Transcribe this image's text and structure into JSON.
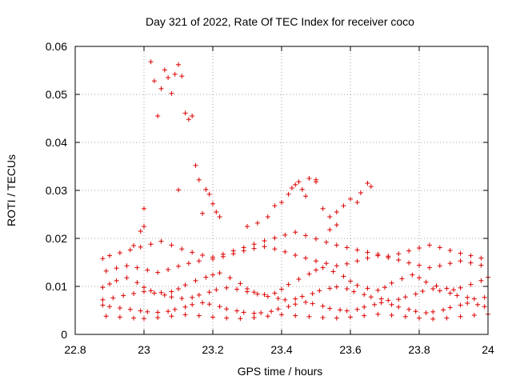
{
  "chart_data": {
    "type": "scatter",
    "title": "Day 321 of 2022, Rate Of TEC Index for receiver coco",
    "xlabel": "GPS time / hours",
    "ylabel": "ROTI / TECUs",
    "xlim": [
      22.8,
      24
    ],
    "ylim": [
      0,
      0.06
    ],
    "x_ticks": [
      "22.8",
      "23",
      "23.2",
      "23.4",
      "23.6",
      "23.8",
      "24"
    ],
    "y_ticks": [
      "0",
      "0.01",
      "0.02",
      "0.03",
      "0.04",
      "0.05",
      "0.06"
    ],
    "grid": true,
    "marker": "plus",
    "color": "#dd0000",
    "series": [
      {
        "x": [
          22.88,
          22.9,
          22.92,
          22.95,
          22.98,
          23.0,
          23.02,
          23.05,
          23.08,
          23.1,
          23.12,
          23.15,
          23.18,
          23.2,
          23.22,
          23.25,
          23.28,
          23.3,
          23.32,
          23.35,
          23.38,
          23.4,
          23.42,
          23.45,
          23.48,
          23.5,
          23.52,
          23.55,
          23.58,
          23.6,
          23.62,
          23.65,
          23.68,
          23.7,
          23.72,
          23.75,
          23.78,
          23.8,
          23.82,
          23.85,
          23.88,
          23.9,
          23.92,
          23.95,
          23.98,
          24.0,
          22.88,
          22.9,
          22.93,
          22.96,
          22.99,
          23.01,
          23.04,
          23.07,
          23.09,
          23.12,
          23.14,
          23.17,
          23.19,
          23.22,
          23.24,
          23.27,
          23.29,
          23.32,
          23.34,
          23.37,
          23.39,
          23.42,
          23.44,
          23.47,
          23.49,
          23.52,
          23.54,
          23.57,
          23.59,
          23.62,
          23.64,
          23.67,
          23.69,
          23.72,
          23.74,
          23.77,
          23.79,
          23.82,
          23.84,
          23.87,
          23.89,
          23.92,
          23.94,
          23.97,
          23.99,
          22.88,
          22.91,
          22.94,
          22.97,
          23.0,
          23.03,
          23.06,
          23.08,
          23.11,
          23.14,
          23.16,
          23.19,
          23.21,
          23.24,
          23.27,
          23.3,
          23.33,
          23.36,
          23.39,
          23.41,
          23.44,
          23.46,
          23.49,
          23.51,
          23.54,
          23.56,
          23.59,
          23.61,
          23.64,
          23.66,
          23.69,
          23.71,
          23.74,
          23.76,
          23.79,
          23.81,
          23.84,
          23.86,
          23.89,
          23.91,
          23.94,
          23.96,
          23.99,
          22.89,
          22.92,
          22.95,
          22.98,
          23.01,
          23.04,
          23.07,
          23.1,
          23.13,
          23.16,
          23.2,
          23.23,
          23.26,
          23.29,
          23.32,
          23.35,
          23.38,
          23.41,
          23.44,
          23.47,
          23.5,
          23.53,
          23.56,
          23.59,
          23.62,
          23.65,
          23.68,
          23.71,
          23.74,
          23.77,
          23.8,
          23.83,
          23.86,
          23.89,
          23.92,
          23.95,
          23.98,
          22.89,
          22.93,
          22.97,
          23.0,
          23.04,
          23.08,
          23.12,
          23.16,
          23.2,
          23.24,
          23.28,
          23.32,
          23.36,
          23.4,
          23.44,
          23.48,
          23.52,
          23.56,
          23.6,
          23.64,
          23.68,
          23.72,
          23.76,
          23.8,
          23.84,
          23.88,
          23.92,
          23.96,
          24.0,
          22.88,
          22.9,
          22.93,
          22.96,
          22.99,
          23.02,
          23.05,
          23.08,
          23.11,
          23.14,
          23.17,
          23.2,
          23.23,
          23.26,
          23.29,
          23.32,
          23.35,
          23.38,
          23.41,
          23.44,
          23.47,
          23.5,
          23.53,
          23.56,
          23.59,
          23.62,
          23.65,
          23.68,
          23.71,
          23.74,
          23.77,
          23.8,
          23.83,
          23.86,
          23.89,
          23.92,
          23.95,
          23.98,
          22.97,
          22.99,
          23.0,
          23.0,
          23.02,
          23.03,
          23.04,
          23.05,
          23.06,
          23.07,
          23.08,
          23.09,
          23.1,
          23.1,
          23.11,
          23.12,
          23.13,
          23.14,
          23.15,
          23.16,
          23.17,
          23.18,
          23.19,
          23.2,
          23.21,
          23.22,
          23.38,
          23.4,
          23.42,
          23.43,
          23.45,
          23.46,
          23.47,
          23.48,
          23.5,
          23.52,
          23.54,
          23.56,
          23.58,
          23.6,
          23.62,
          23.63,
          23.65,
          23.66,
          23.54,
          23.56,
          23.44,
          23.5,
          23.36,
          23.33,
          23.3
        ],
        "y": [
          0.0098,
          0.0105,
          0.0112,
          0.0118,
          0.0108,
          0.0098,
          0.0091,
          0.0087,
          0.0089,
          0.0095,
          0.0103,
          0.0112,
          0.0119,
          0.0124,
          0.0128,
          0.0118,
          0.0106,
          0.0095,
          0.0088,
          0.0083,
          0.0086,
          0.0094,
          0.0104,
          0.0115,
          0.0126,
          0.0134,
          0.0139,
          0.0131,
          0.0121,
          0.0111,
          0.0102,
          0.0096,
          0.0092,
          0.0098,
          0.0107,
          0.0116,
          0.0124,
          0.0118,
          0.0109,
          0.0101,
          0.0096,
          0.0093,
          0.0097,
          0.0104,
          0.0112,
          0.0119,
          0.0061,
          0.0058,
          0.0055,
          0.0052,
          0.0049,
          0.0047,
          0.0046,
          0.0048,
          0.0052,
          0.0057,
          0.0062,
          0.0066,
          0.0063,
          0.0058,
          0.0053,
          0.0049,
          0.0046,
          0.0044,
          0.0045,
          0.0048,
          0.0053,
          0.0058,
          0.0063,
          0.0067,
          0.0064,
          0.0059,
          0.0054,
          0.0051,
          0.0049,
          0.0052,
          0.0057,
          0.0062,
          0.0066,
          0.0062,
          0.0057,
          0.0052,
          0.0048,
          0.0045,
          0.0047,
          0.0051,
          0.0056,
          0.0061,
          0.0065,
          0.0062,
          0.0058,
          0.0072,
          0.0076,
          0.0081,
          0.0085,
          0.0089,
          0.0086,
          0.0082,
          0.0078,
          0.0075,
          0.0077,
          0.0082,
          0.0088,
          0.0093,
          0.0097,
          0.0094,
          0.0089,
          0.0084,
          0.0079,
          0.0075,
          0.0072,
          0.0074,
          0.0079,
          0.0085,
          0.0091,
          0.0096,
          0.0099,
          0.0095,
          0.0089,
          0.0083,
          0.0078,
          0.0074,
          0.0071,
          0.0073,
          0.0078,
          0.0084,
          0.009,
          0.0095,
          0.0091,
          0.0086,
          0.0081,
          0.0077,
          0.0074,
          0.0077,
          0.0132,
          0.0138,
          0.0143,
          0.0139,
          0.0134,
          0.0129,
          0.0135,
          0.0142,
          0.0148,
          0.0153,
          0.0157,
          0.0162,
          0.0168,
          0.0174,
          0.0179,
          0.0183,
          0.0178,
          0.0172,
          0.0165,
          0.0159,
          0.0153,
          0.0148,
          0.0143,
          0.0147,
          0.0153,
          0.0159,
          0.0164,
          0.016,
          0.0155,
          0.0149,
          0.0144,
          0.0139,
          0.0143,
          0.0148,
          0.0153,
          0.0149,
          0.0144,
          0.0038,
          0.0036,
          0.0034,
          0.0033,
          0.0035,
          0.0038,
          0.0041,
          0.0039,
          0.0036,
          0.0034,
          0.0033,
          0.0035,
          0.0038,
          0.0041,
          0.0039,
          0.0037,
          0.0035,
          0.0034,
          0.0036,
          0.0039,
          0.0042,
          0.004,
          0.0037,
          0.0034,
          0.0032,
          0.0034,
          0.0037,
          0.004,
          0.0042,
          0.0158,
          0.0164,
          0.017,
          0.0176,
          0.0182,
          0.0188,
          0.0194,
          0.0186,
          0.0178,
          0.0171,
          0.0165,
          0.0161,
          0.0167,
          0.0174,
          0.0181,
          0.0188,
          0.0195,
          0.0201,
          0.0207,
          0.0213,
          0.0206,
          0.0199,
          0.0192,
          0.0186,
          0.0181,
          0.0176,
          0.0171,
          0.0167,
          0.0163,
          0.0168,
          0.0174,
          0.018,
          0.0186,
          0.0181,
          0.0175,
          0.0169,
          0.0164,
          0.0159,
          0.0185,
          0.0215,
          0.0225,
          0.0262,
          0.0568,
          0.0528,
          0.0455,
          0.0512,
          0.0551,
          0.0535,
          0.0502,
          0.0542,
          0.0301,
          0.0562,
          0.0538,
          0.0461,
          0.0448,
          0.0455,
          0.0352,
          0.0322,
          0.0252,
          0.0302,
          0.0292,
          0.0272,
          0.0255,
          0.0245,
          0.0268,
          0.0275,
          0.0292,
          0.0305,
          0.0318,
          0.0302,
          0.0288,
          0.0325,
          0.0318,
          0.0262,
          0.0245,
          0.0255,
          0.0268,
          0.0282,
          0.0275,
          0.0295,
          0.0315,
          0.0308,
          0.0218,
          0.0228,
          0.0312,
          0.0322,
          0.0245,
          0.0232,
          0.0225
        ]
      }
    ]
  }
}
